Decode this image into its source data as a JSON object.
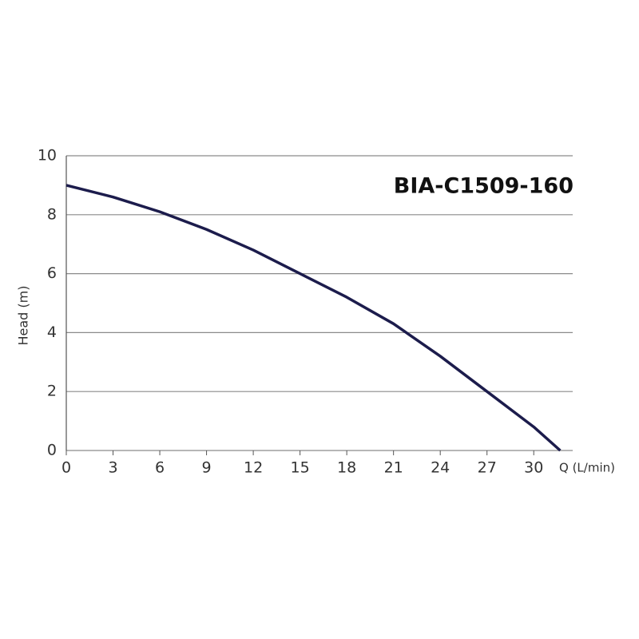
{
  "chart_data": {
    "type": "line",
    "title": "BIA-C1509-160",
    "x_label": "Q (L/min)",
    "y_label": "Head (m)",
    "x": [
      0,
      3,
      6,
      9,
      12,
      15,
      18,
      21,
      24,
      27,
      30,
      31.7
    ],
    "series": [
      {
        "name": "BIA-C1509-160",
        "color": "#1c1c4c",
        "values": [
          9,
          8.6,
          8.1,
          7.5,
          6.8,
          6.0,
          5.2,
          4.3,
          3.2,
          2.0,
          0.8,
          0
        ]
      }
    ],
    "xlim": [
      0,
      32.5
    ],
    "xticks": [
      0,
      3,
      6,
      9,
      12,
      15,
      18,
      21,
      24,
      27,
      30
    ],
    "ylim": [
      0,
      10
    ],
    "yticks": [
      0,
      2,
      4,
      6,
      8,
      10
    ],
    "grid": true
  }
}
